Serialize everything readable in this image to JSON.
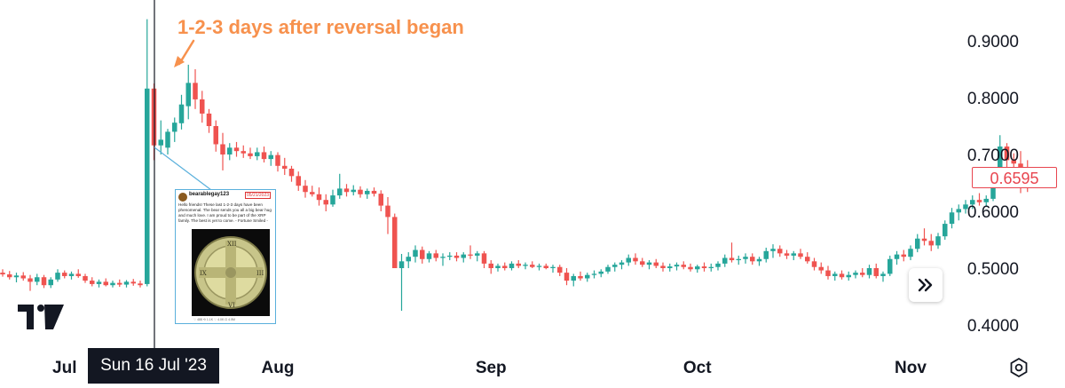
{
  "chart_data": {
    "type": "candlestick",
    "annotation": "1-2-3 days after reversal began",
    "x_ticks": [
      "Jul",
      "Aug",
      "Sep",
      "Oct",
      "Nov"
    ],
    "y_ticks": [
      "0.9000",
      "0.8000",
      "0.7000",
      "0.6000",
      "0.5000",
      "0.4000"
    ],
    "ylim": [
      0.37,
      0.95
    ],
    "crosshair_label": "Sun 16 Jul '23",
    "last_price": "0.6595",
    "up_color": "#26a69a",
    "down_color": "#ef5350",
    "grid": false,
    "candles": [
      {
        "date": "2023-06-22",
        "o": 0.492,
        "h": 0.498,
        "l": 0.485,
        "c": 0.489
      },
      {
        "date": "2023-06-23",
        "o": 0.489,
        "h": 0.495,
        "l": 0.48,
        "c": 0.484
      },
      {
        "date": "2023-06-24",
        "o": 0.484,
        "h": 0.492,
        "l": 0.475,
        "c": 0.487
      },
      {
        "date": "2023-06-25",
        "o": 0.487,
        "h": 0.493,
        "l": 0.478,
        "c": 0.482
      },
      {
        "date": "2023-06-26",
        "o": 0.482,
        "h": 0.488,
        "l": 0.46,
        "c": 0.476
      },
      {
        "date": "2023-06-27",
        "o": 0.476,
        "h": 0.49,
        "l": 0.47,
        "c": 0.484
      },
      {
        "date": "2023-06-28",
        "o": 0.484,
        "h": 0.488,
        "l": 0.465,
        "c": 0.47
      },
      {
        "date": "2023-06-29",
        "o": 0.47,
        "h": 0.484,
        "l": 0.465,
        "c": 0.48
      },
      {
        "date": "2023-06-30",
        "o": 0.48,
        "h": 0.498,
        "l": 0.476,
        "c": 0.492
      },
      {
        "date": "2023-07-01",
        "o": 0.492,
        "h": 0.496,
        "l": 0.482,
        "c": 0.486
      },
      {
        "date": "2023-07-02",
        "o": 0.486,
        "h": 0.494,
        "l": 0.48,
        "c": 0.49
      },
      {
        "date": "2023-07-03",
        "o": 0.49,
        "h": 0.498,
        "l": 0.483,
        "c": 0.486
      },
      {
        "date": "2023-07-04",
        "o": 0.486,
        "h": 0.49,
        "l": 0.474,
        "c": 0.478
      },
      {
        "date": "2023-07-05",
        "o": 0.478,
        "h": 0.484,
        "l": 0.468,
        "c": 0.472
      },
      {
        "date": "2023-07-06",
        "o": 0.472,
        "h": 0.48,
        "l": 0.466,
        "c": 0.476
      },
      {
        "date": "2023-07-07",
        "o": 0.476,
        "h": 0.482,
        "l": 0.468,
        "c": 0.47
      },
      {
        "date": "2023-07-08",
        "o": 0.47,
        "h": 0.478,
        "l": 0.466,
        "c": 0.474
      },
      {
        "date": "2023-07-09",
        "o": 0.474,
        "h": 0.48,
        "l": 0.467,
        "c": 0.471
      },
      {
        "date": "2023-07-10",
        "o": 0.471,
        "h": 0.479,
        "l": 0.466,
        "c": 0.476
      },
      {
        "date": "2023-07-11",
        "o": 0.476,
        "h": 0.481,
        "l": 0.469,
        "c": 0.473
      },
      {
        "date": "2023-07-12",
        "o": 0.473,
        "h": 0.478,
        "l": 0.466,
        "c": 0.47
      },
      {
        "date": "2023-07-13",
        "o": 0.472,
        "h": 0.938,
        "l": 0.468,
        "c": 0.816
      },
      {
        "date": "2023-07-14",
        "o": 0.816,
        "h": 0.825,
        "l": 0.69,
        "c": 0.716
      },
      {
        "date": "2023-07-15",
        "o": 0.716,
        "h": 0.76,
        "l": 0.7,
        "c": 0.726
      },
      {
        "date": "2023-07-16",
        "o": 0.712,
        "h": 0.745,
        "l": 0.7,
        "c": 0.74
      },
      {
        "date": "2023-07-17",
        "o": 0.74,
        "h": 0.765,
        "l": 0.722,
        "c": 0.756
      },
      {
        "date": "2023-07-18",
        "o": 0.755,
        "h": 0.805,
        "l": 0.744,
        "c": 0.788
      },
      {
        "date": "2023-07-19",
        "o": 0.785,
        "h": 0.858,
        "l": 0.762,
        "c": 0.826
      },
      {
        "date": "2023-07-20",
        "o": 0.826,
        "h": 0.85,
        "l": 0.78,
        "c": 0.797
      },
      {
        "date": "2023-07-21",
        "o": 0.797,
        "h": 0.812,
        "l": 0.756,
        "c": 0.772
      },
      {
        "date": "2023-07-22",
        "o": 0.772,
        "h": 0.78,
        "l": 0.738,
        "c": 0.75
      },
      {
        "date": "2023-07-23",
        "o": 0.75,
        "h": 0.76,
        "l": 0.705,
        "c": 0.718
      },
      {
        "date": "2023-07-24",
        "o": 0.718,
        "h": 0.738,
        "l": 0.672,
        "c": 0.7
      },
      {
        "date": "2023-07-25",
        "o": 0.7,
        "h": 0.72,
        "l": 0.69,
        "c": 0.712
      },
      {
        "date": "2023-07-26",
        "o": 0.712,
        "h": 0.722,
        "l": 0.696,
        "c": 0.706
      },
      {
        "date": "2023-07-27",
        "o": 0.706,
        "h": 0.716,
        "l": 0.694,
        "c": 0.702
      },
      {
        "date": "2023-07-28",
        "o": 0.702,
        "h": 0.712,
        "l": 0.692,
        "c": 0.697
      },
      {
        "date": "2023-07-29",
        "o": 0.697,
        "h": 0.712,
        "l": 0.69,
        "c": 0.704
      },
      {
        "date": "2023-07-30",
        "o": 0.704,
        "h": 0.714,
        "l": 0.686,
        "c": 0.692
      },
      {
        "date": "2023-07-31",
        "o": 0.692,
        "h": 0.706,
        "l": 0.68,
        "c": 0.699
      },
      {
        "date": "2023-08-01",
        "o": 0.699,
        "h": 0.704,
        "l": 0.67,
        "c": 0.68
      },
      {
        "date": "2023-08-02",
        "o": 0.68,
        "h": 0.694,
        "l": 0.664,
        "c": 0.675
      },
      {
        "date": "2023-08-03",
        "o": 0.675,
        "h": 0.68,
        "l": 0.652,
        "c": 0.662
      },
      {
        "date": "2023-08-04",
        "o": 0.662,
        "h": 0.67,
        "l": 0.636,
        "c": 0.645
      },
      {
        "date": "2023-08-05",
        "o": 0.645,
        "h": 0.655,
        "l": 0.624,
        "c": 0.634
      },
      {
        "date": "2023-08-06",
        "o": 0.634,
        "h": 0.645,
        "l": 0.626,
        "c": 0.63
      },
      {
        "date": "2023-08-07",
        "o": 0.63,
        "h": 0.642,
        "l": 0.61,
        "c": 0.62
      },
      {
        "date": "2023-08-08",
        "o": 0.62,
        "h": 0.63,
        "l": 0.6,
        "c": 0.612
      },
      {
        "date": "2023-08-09",
        "o": 0.612,
        "h": 0.638,
        "l": 0.608,
        "c": 0.628
      },
      {
        "date": "2023-08-10",
        "o": 0.628,
        "h": 0.666,
        "l": 0.622,
        "c": 0.64
      },
      {
        "date": "2023-08-11",
        "o": 0.64,
        "h": 0.648,
        "l": 0.626,
        "c": 0.634
      },
      {
        "date": "2023-08-12",
        "o": 0.634,
        "h": 0.646,
        "l": 0.628,
        "c": 0.638
      },
      {
        "date": "2023-08-13",
        "o": 0.638,
        "h": 0.644,
        "l": 0.624,
        "c": 0.63
      },
      {
        "date": "2023-08-14",
        "o": 0.63,
        "h": 0.64,
        "l": 0.622,
        "c": 0.636
      },
      {
        "date": "2023-08-15",
        "o": 0.636,
        "h": 0.642,
        "l": 0.626,
        "c": 0.631
      },
      {
        "date": "2023-08-16",
        "o": 0.631,
        "h": 0.637,
        "l": 0.6,
        "c": 0.61
      },
      {
        "date": "2023-08-17",
        "o": 0.61,
        "h": 0.625,
        "l": 0.56,
        "c": 0.59
      },
      {
        "date": "2023-08-18",
        "o": 0.59,
        "h": 0.596,
        "l": 0.5,
        "c": 0.5
      },
      {
        "date": "2023-08-19",
        "o": 0.5,
        "h": 0.525,
        "l": 0.425,
        "c": 0.512
      },
      {
        "date": "2023-08-20",
        "o": 0.512,
        "h": 0.528,
        "l": 0.5,
        "c": 0.52
      },
      {
        "date": "2023-08-21",
        "o": 0.52,
        "h": 0.54,
        "l": 0.51,
        "c": 0.532
      },
      {
        "date": "2023-08-22",
        "o": 0.532,
        "h": 0.538,
        "l": 0.508,
        "c": 0.516
      },
      {
        "date": "2023-08-23",
        "o": 0.516,
        "h": 0.53,
        "l": 0.51,
        "c": 0.526
      },
      {
        "date": "2023-08-24",
        "o": 0.526,
        "h": 0.532,
        "l": 0.512,
        "c": 0.518
      },
      {
        "date": "2023-08-25",
        "o": 0.518,
        "h": 0.526,
        "l": 0.504,
        "c": 0.52
      },
      {
        "date": "2023-08-26",
        "o": 0.52,
        "h": 0.528,
        "l": 0.514,
        "c": 0.522
      },
      {
        "date": "2023-08-27",
        "o": 0.522,
        "h": 0.528,
        "l": 0.512,
        "c": 0.518
      },
      {
        "date": "2023-08-28",
        "o": 0.518,
        "h": 0.528,
        "l": 0.51,
        "c": 0.524
      },
      {
        "date": "2023-08-29",
        "o": 0.524,
        "h": 0.54,
        "l": 0.516,
        "c": 0.522
      },
      {
        "date": "2023-08-30",
        "o": 0.522,
        "h": 0.53,
        "l": 0.512,
        "c": 0.526
      },
      {
        "date": "2023-08-31",
        "o": 0.526,
        "h": 0.53,
        "l": 0.5,
        "c": 0.508
      },
      {
        "date": "2023-09-01",
        "o": 0.508,
        "h": 0.514,
        "l": 0.49,
        "c": 0.5
      },
      {
        "date": "2023-09-02",
        "o": 0.5,
        "h": 0.508,
        "l": 0.494,
        "c": 0.504
      },
      {
        "date": "2023-09-03",
        "o": 0.504,
        "h": 0.51,
        "l": 0.496,
        "c": 0.5
      },
      {
        "date": "2023-09-04",
        "o": 0.5,
        "h": 0.512,
        "l": 0.496,
        "c": 0.508
      },
      {
        "date": "2023-09-05",
        "o": 0.508,
        "h": 0.514,
        "l": 0.5,
        "c": 0.504
      },
      {
        "date": "2023-09-06",
        "o": 0.504,
        "h": 0.51,
        "l": 0.498,
        "c": 0.506
      },
      {
        "date": "2023-09-07",
        "o": 0.506,
        "h": 0.512,
        "l": 0.5,
        "c": 0.502
      },
      {
        "date": "2023-09-08",
        "o": 0.502,
        "h": 0.508,
        "l": 0.496,
        "c": 0.504
      },
      {
        "date": "2023-09-09",
        "o": 0.504,
        "h": 0.508,
        "l": 0.498,
        "c": 0.5
      },
      {
        "date": "2023-09-10",
        "o": 0.5,
        "h": 0.506,
        "l": 0.492,
        "c": 0.502
      },
      {
        "date": "2023-09-11",
        "o": 0.502,
        "h": 0.506,
        "l": 0.486,
        "c": 0.492
      },
      {
        "date": "2023-09-12",
        "o": 0.492,
        "h": 0.5,
        "l": 0.47,
        "c": 0.478
      },
      {
        "date": "2023-09-13",
        "o": 0.478,
        "h": 0.49,
        "l": 0.468,
        "c": 0.486
      },
      {
        "date": "2023-09-14",
        "o": 0.486,
        "h": 0.494,
        "l": 0.478,
        "c": 0.482
      },
      {
        "date": "2023-09-15",
        "o": 0.482,
        "h": 0.492,
        "l": 0.476,
        "c": 0.488
      },
      {
        "date": "2023-09-16",
        "o": 0.488,
        "h": 0.496,
        "l": 0.482,
        "c": 0.49
      },
      {
        "date": "2023-09-17",
        "o": 0.49,
        "h": 0.498,
        "l": 0.484,
        "c": 0.494
      },
      {
        "date": "2023-09-18",
        "o": 0.494,
        "h": 0.506,
        "l": 0.49,
        "c": 0.502
      },
      {
        "date": "2023-09-19",
        "o": 0.502,
        "h": 0.51,
        "l": 0.494,
        "c": 0.506
      },
      {
        "date": "2023-09-20",
        "o": 0.506,
        "h": 0.514,
        "l": 0.498,
        "c": 0.51
      },
      {
        "date": "2023-09-21",
        "o": 0.51,
        "h": 0.524,
        "l": 0.504,
        "c": 0.518
      },
      {
        "date": "2023-09-22",
        "o": 0.518,
        "h": 0.526,
        "l": 0.506,
        "c": 0.512
      },
      {
        "date": "2023-09-23",
        "o": 0.512,
        "h": 0.518,
        "l": 0.502,
        "c": 0.506
      },
      {
        "date": "2023-09-24",
        "o": 0.506,
        "h": 0.514,
        "l": 0.498,
        "c": 0.51
      },
      {
        "date": "2023-09-25",
        "o": 0.51,
        "h": 0.516,
        "l": 0.5,
        "c": 0.504
      },
      {
        "date": "2023-09-26",
        "o": 0.504,
        "h": 0.51,
        "l": 0.494,
        "c": 0.5
      },
      {
        "date": "2023-09-27",
        "o": 0.5,
        "h": 0.508,
        "l": 0.494,
        "c": 0.503
      },
      {
        "date": "2023-09-28",
        "o": 0.503,
        "h": 0.51,
        "l": 0.496,
        "c": 0.506
      },
      {
        "date": "2023-09-29",
        "o": 0.506,
        "h": 0.512,
        "l": 0.498,
        "c": 0.502
      },
      {
        "date": "2023-09-30",
        "o": 0.502,
        "h": 0.508,
        "l": 0.494,
        "c": 0.498
      },
      {
        "date": "2023-10-01",
        "o": 0.498,
        "h": 0.506,
        "l": 0.492,
        "c": 0.503
      },
      {
        "date": "2023-10-02",
        "o": 0.503,
        "h": 0.51,
        "l": 0.494,
        "c": 0.5
      },
      {
        "date": "2023-10-03",
        "o": 0.5,
        "h": 0.508,
        "l": 0.494,
        "c": 0.502
      },
      {
        "date": "2023-10-04",
        "o": 0.502,
        "h": 0.512,
        "l": 0.496,
        "c": 0.508
      },
      {
        "date": "2023-10-05",
        "o": 0.508,
        "h": 0.524,
        "l": 0.502,
        "c": 0.518
      },
      {
        "date": "2023-10-06",
        "o": 0.518,
        "h": 0.545,
        "l": 0.51,
        "c": 0.514
      },
      {
        "date": "2023-10-07",
        "o": 0.514,
        "h": 0.522,
        "l": 0.506,
        "c": 0.516
      },
      {
        "date": "2023-10-08",
        "o": 0.516,
        "h": 0.526,
        "l": 0.508,
        "c": 0.52
      },
      {
        "date": "2023-10-09",
        "o": 0.52,
        "h": 0.526,
        "l": 0.506,
        "c": 0.512
      },
      {
        "date": "2023-10-10",
        "o": 0.512,
        "h": 0.52,
        "l": 0.504,
        "c": 0.516
      },
      {
        "date": "2023-10-11",
        "o": 0.516,
        "h": 0.536,
        "l": 0.51,
        "c": 0.53
      },
      {
        "date": "2023-10-12",
        "o": 0.53,
        "h": 0.542,
        "l": 0.518,
        "c": 0.534
      },
      {
        "date": "2023-10-13",
        "o": 0.534,
        "h": 0.54,
        "l": 0.52,
        "c": 0.526
      },
      {
        "date": "2023-10-14",
        "o": 0.526,
        "h": 0.532,
        "l": 0.516,
        "c": 0.522
      },
      {
        "date": "2023-10-15",
        "o": 0.522,
        "h": 0.53,
        "l": 0.514,
        "c": 0.526
      },
      {
        "date": "2023-10-16",
        "o": 0.526,
        "h": 0.534,
        "l": 0.516,
        "c": 0.52
      },
      {
        "date": "2023-10-17",
        "o": 0.52,
        "h": 0.528,
        "l": 0.508,
        "c": 0.512
      },
      {
        "date": "2023-10-18",
        "o": 0.512,
        "h": 0.518,
        "l": 0.496,
        "c": 0.502
      },
      {
        "date": "2023-10-19",
        "o": 0.502,
        "h": 0.51,
        "l": 0.49,
        "c": 0.496
      },
      {
        "date": "2023-10-20",
        "o": 0.496,
        "h": 0.504,
        "l": 0.48,
        "c": 0.486
      },
      {
        "date": "2023-10-21",
        "o": 0.486,
        "h": 0.494,
        "l": 0.478,
        "c": 0.49
      },
      {
        "date": "2023-10-22",
        "o": 0.49,
        "h": 0.496,
        "l": 0.48,
        "c": 0.484
      },
      {
        "date": "2023-10-23",
        "o": 0.484,
        "h": 0.494,
        "l": 0.478,
        "c": 0.488
      },
      {
        "date": "2023-10-24",
        "o": 0.488,
        "h": 0.496,
        "l": 0.482,
        "c": 0.492
      },
      {
        "date": "2023-10-25",
        "o": 0.492,
        "h": 0.5,
        "l": 0.484,
        "c": 0.488
      },
      {
        "date": "2023-10-26",
        "o": 0.488,
        "h": 0.506,
        "l": 0.482,
        "c": 0.5
      },
      {
        "date": "2023-10-27",
        "o": 0.5,
        "h": 0.508,
        "l": 0.482,
        "c": 0.486
      },
      {
        "date": "2023-10-28",
        "o": 0.486,
        "h": 0.494,
        "l": 0.476,
        "c": 0.49
      },
      {
        "date": "2023-10-29",
        "o": 0.49,
        "h": 0.522,
        "l": 0.486,
        "c": 0.516
      },
      {
        "date": "2023-10-30",
        "o": 0.516,
        "h": 0.53,
        "l": 0.506,
        "c": 0.524
      },
      {
        "date": "2023-10-31",
        "o": 0.524,
        "h": 0.532,
        "l": 0.512,
        "c": 0.52
      },
      {
        "date": "2023-11-01",
        "o": 0.52,
        "h": 0.54,
        "l": 0.514,
        "c": 0.534
      },
      {
        "date": "2023-11-02",
        "o": 0.534,
        "h": 0.56,
        "l": 0.528,
        "c": 0.552
      },
      {
        "date": "2023-11-03",
        "o": 0.552,
        "h": 0.57,
        "l": 0.54,
        "c": 0.548
      },
      {
        "date": "2023-11-04",
        "o": 0.548,
        "h": 0.56,
        "l": 0.53,
        "c": 0.54
      },
      {
        "date": "2023-11-05",
        "o": 0.54,
        "h": 0.562,
        "l": 0.534,
        "c": 0.556
      },
      {
        "date": "2023-11-06",
        "o": 0.556,
        "h": 0.584,
        "l": 0.55,
        "c": 0.578
      },
      {
        "date": "2023-11-07",
        "o": 0.578,
        "h": 0.606,
        "l": 0.57,
        "c": 0.598
      },
      {
        "date": "2023-11-08",
        "o": 0.598,
        "h": 0.612,
        "l": 0.584,
        "c": 0.604
      },
      {
        "date": "2023-11-09",
        "o": 0.604,
        "h": 0.62,
        "l": 0.596,
        "c": 0.612
      },
      {
        "date": "2023-11-10",
        "o": 0.612,
        "h": 0.628,
        "l": 0.604,
        "c": 0.62
      },
      {
        "date": "2023-11-11",
        "o": 0.62,
        "h": 0.632,
        "l": 0.61,
        "c": 0.616
      },
      {
        "date": "2023-11-12",
        "o": 0.616,
        "h": 0.628,
        "l": 0.608,
        "c": 0.622
      },
      {
        "date": "2023-11-13",
        "o": 0.622,
        "h": 0.67,
        "l": 0.618,
        "c": 0.66
      },
      {
        "date": "2023-11-14",
        "o": 0.66,
        "h": 0.734,
        "l": 0.652,
        "c": 0.714
      },
      {
        "date": "2023-11-15",
        "o": 0.714,
        "h": 0.72,
        "l": 0.676,
        "c": 0.69
      },
      {
        "date": "2023-11-16",
        "o": 0.69,
        "h": 0.702,
        "l": 0.66,
        "c": 0.684
      },
      {
        "date": "2023-11-17",
        "o": 0.684,
        "h": 0.706,
        "l": 0.632,
        "c": 0.666
      },
      {
        "date": "2023-11-18",
        "o": 0.666,
        "h": 0.69,
        "l": 0.634,
        "c": 0.6595
      }
    ]
  },
  "tweet": {
    "handle": "bearablegay123",
    "date": "05/21/2023",
    "body": "Hello friends! These last 1-2-3 days have been phenomenal. The bear sends you all a big bear hug and much love. I am proud to be part of the XRP family. The best is yet to come. - Fortune Smiled -",
    "stats": "♡ 488   ⟲ 1.1K   ♡ 4.0K   ⊡ 4.5M"
  }
}
